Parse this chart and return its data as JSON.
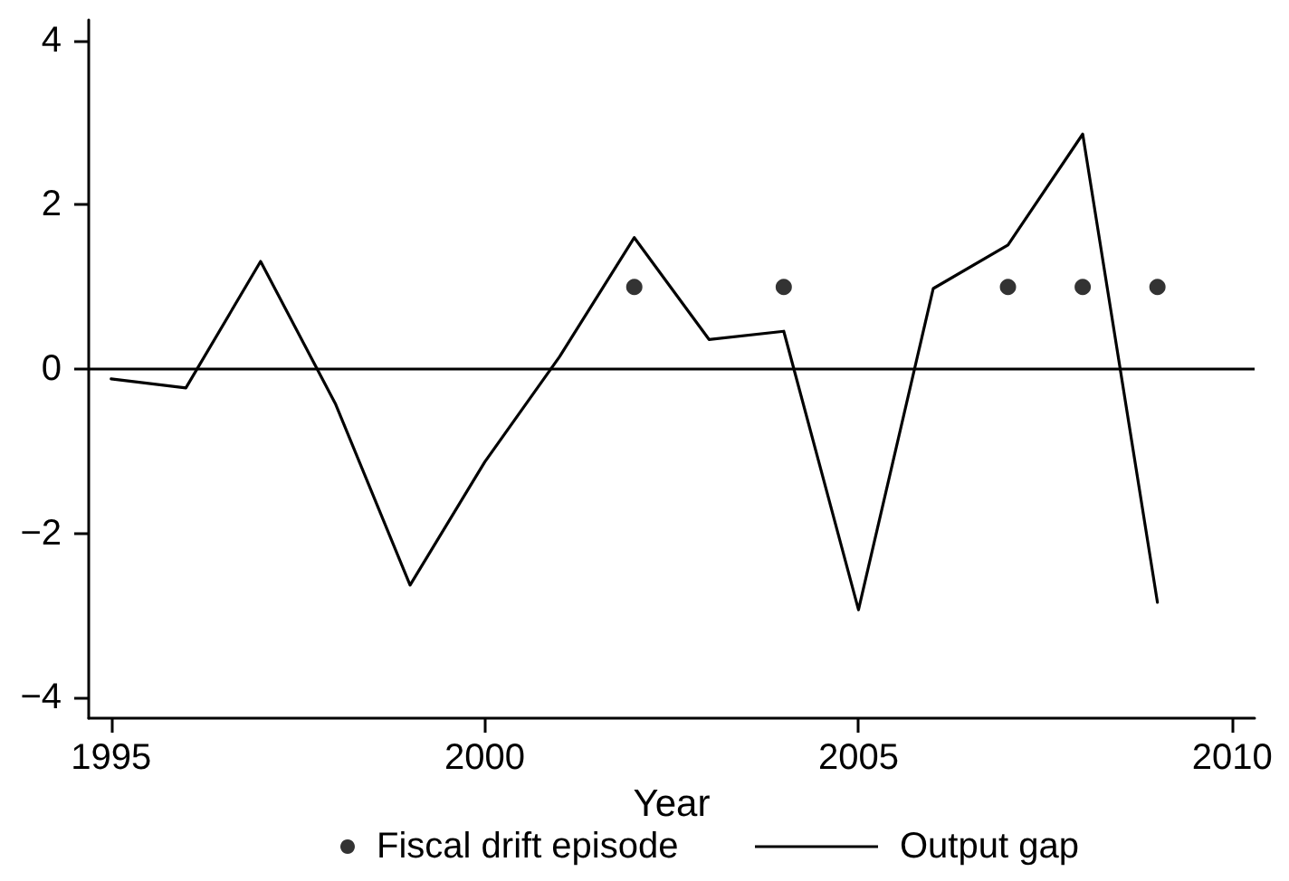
{
  "chart_data": {
    "type": "line",
    "xlabel": "Year",
    "x": [
      1995,
      1996,
      1997,
      1998,
      1999,
      2000,
      2001,
      2002,
      2003,
      2004,
      2005,
      2006,
      2007,
      2008,
      2009
    ],
    "series": [
      {
        "name": "Fiscal drift episode",
        "type": "scatter",
        "marker": "circle",
        "color": "#000000",
        "x": [
          2002,
          2004,
          2007,
          2008,
          2009
        ],
        "values": [
          1,
          1,
          1,
          1,
          1
        ]
      },
      {
        "name": "Output gap",
        "color": "#000000",
        "values": [
          -0.12,
          -0.23,
          1.31,
          -0.42,
          -2.63,
          -1.13,
          0.15,
          1.6,
          0.36,
          0.46,
          -2.93,
          0.98,
          1.51,
          2.86,
          -2.84
        ]
      }
    ],
    "xlim": [
      1994.7,
      2010.3
    ],
    "ylim": [
      -4.25,
      4.25
    ],
    "xticks": [
      1995,
      2000,
      2005,
      2010
    ],
    "yticks": [
      {
        "value": -4,
        "label": "−4"
      },
      {
        "value": -2,
        "label": "−2"
      },
      0,
      2,
      4
    ],
    "ref_lines": [
      {
        "axis": "y",
        "value": 0,
        "color": "#000000"
      }
    ],
    "grid": false,
    "legend": "bottom",
    "marker": "none",
    "line_style": "solid"
  }
}
